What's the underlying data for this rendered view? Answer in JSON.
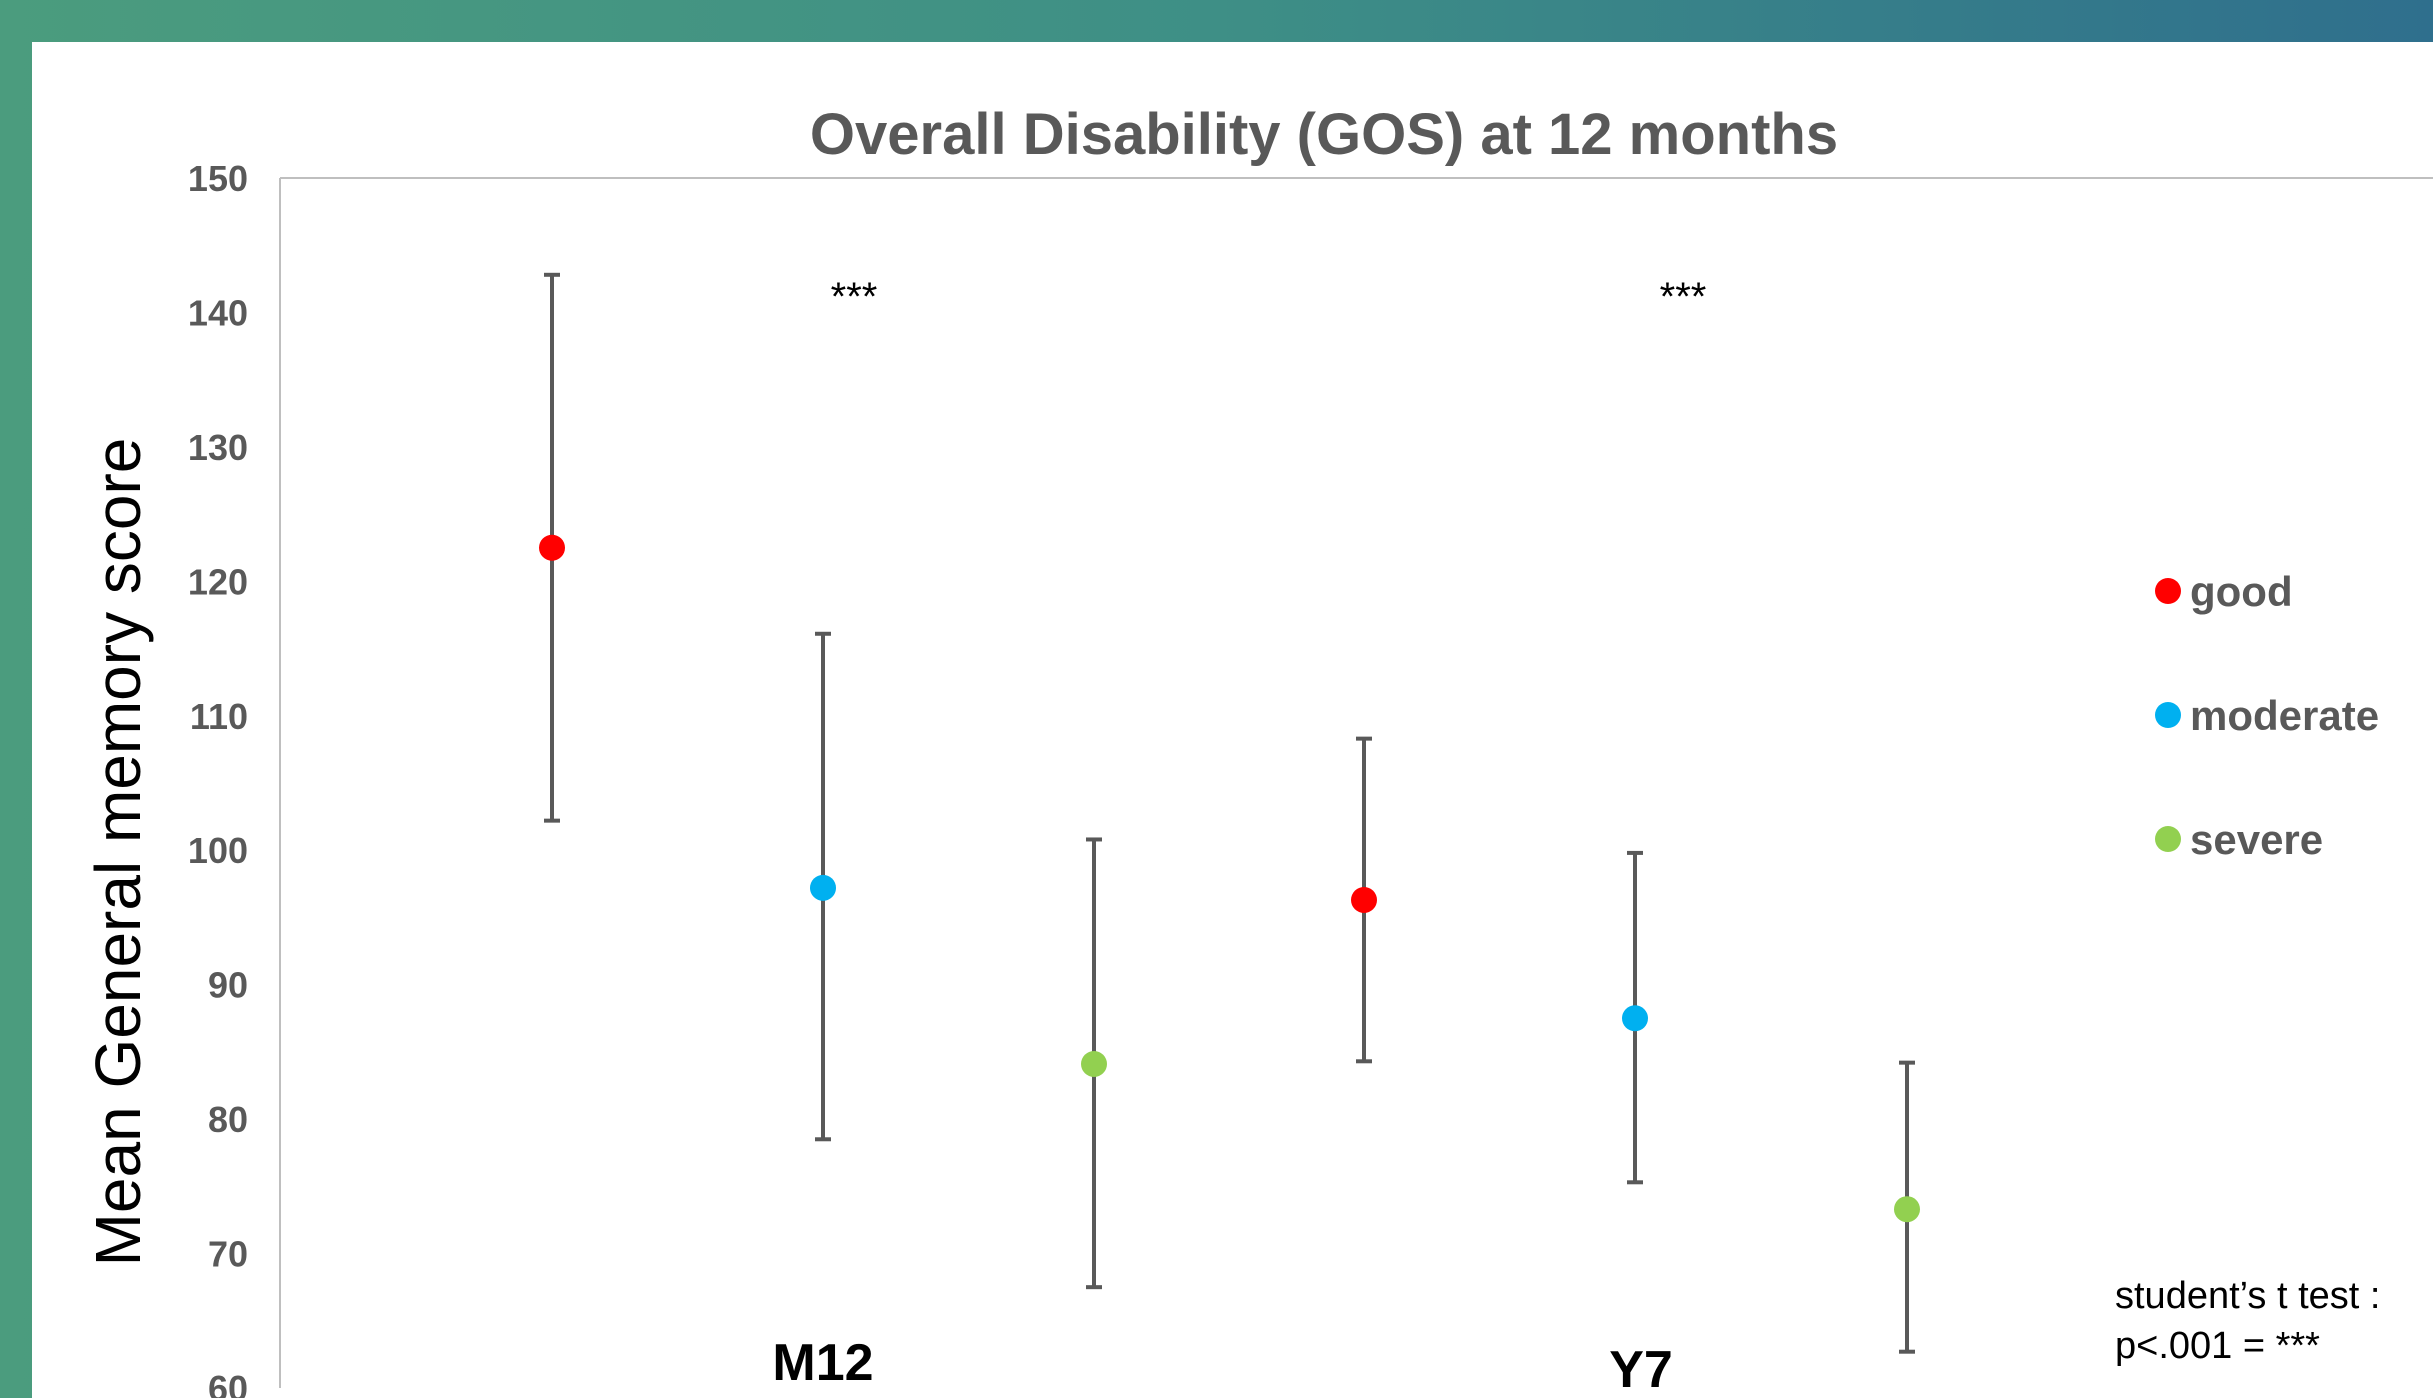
{
  "chart_data": {
    "type": "scatter",
    "title": "Overall Disability (GOS) at 12 months",
    "ylabel": "Mean General memory score",
    "ylim": [
      60,
      150
    ],
    "yticks": [
      60,
      70,
      80,
      90,
      100,
      110,
      120,
      130,
      140,
      150
    ],
    "groups": [
      "M12",
      "Y7"
    ],
    "significance": [
      "***",
      "***"
    ],
    "series": [
      {
        "name": "good",
        "color": "#ff0000",
        "points": [
          {
            "group": "M12",
            "y": 122.5,
            "err_low": 102.2,
            "err_high": 142.8
          },
          {
            "group": "Y7",
            "y": 96.3,
            "err_low": 84.3,
            "err_high": 108.3
          }
        ]
      },
      {
        "name": "moderate",
        "color": "#00b0f0",
        "points": [
          {
            "group": "M12",
            "y": 97.2,
            "err_low": 78.5,
            "err_high": 116.1
          },
          {
            "group": "Y7",
            "y": 87.5,
            "err_low": 75.3,
            "err_high": 99.8
          }
        ]
      },
      {
        "name": "severe",
        "color": "#92d050",
        "points": [
          {
            "group": "M12",
            "y": 84.1,
            "err_low": 67.5,
            "err_high": 100.8
          },
          {
            "group": "Y7",
            "y": 73.3,
            "err_low": 62.7,
            "err_high": 84.2
          }
        ]
      }
    ],
    "footnote": [
      "student’s t test :",
      "p<.001 = ***"
    ]
  }
}
